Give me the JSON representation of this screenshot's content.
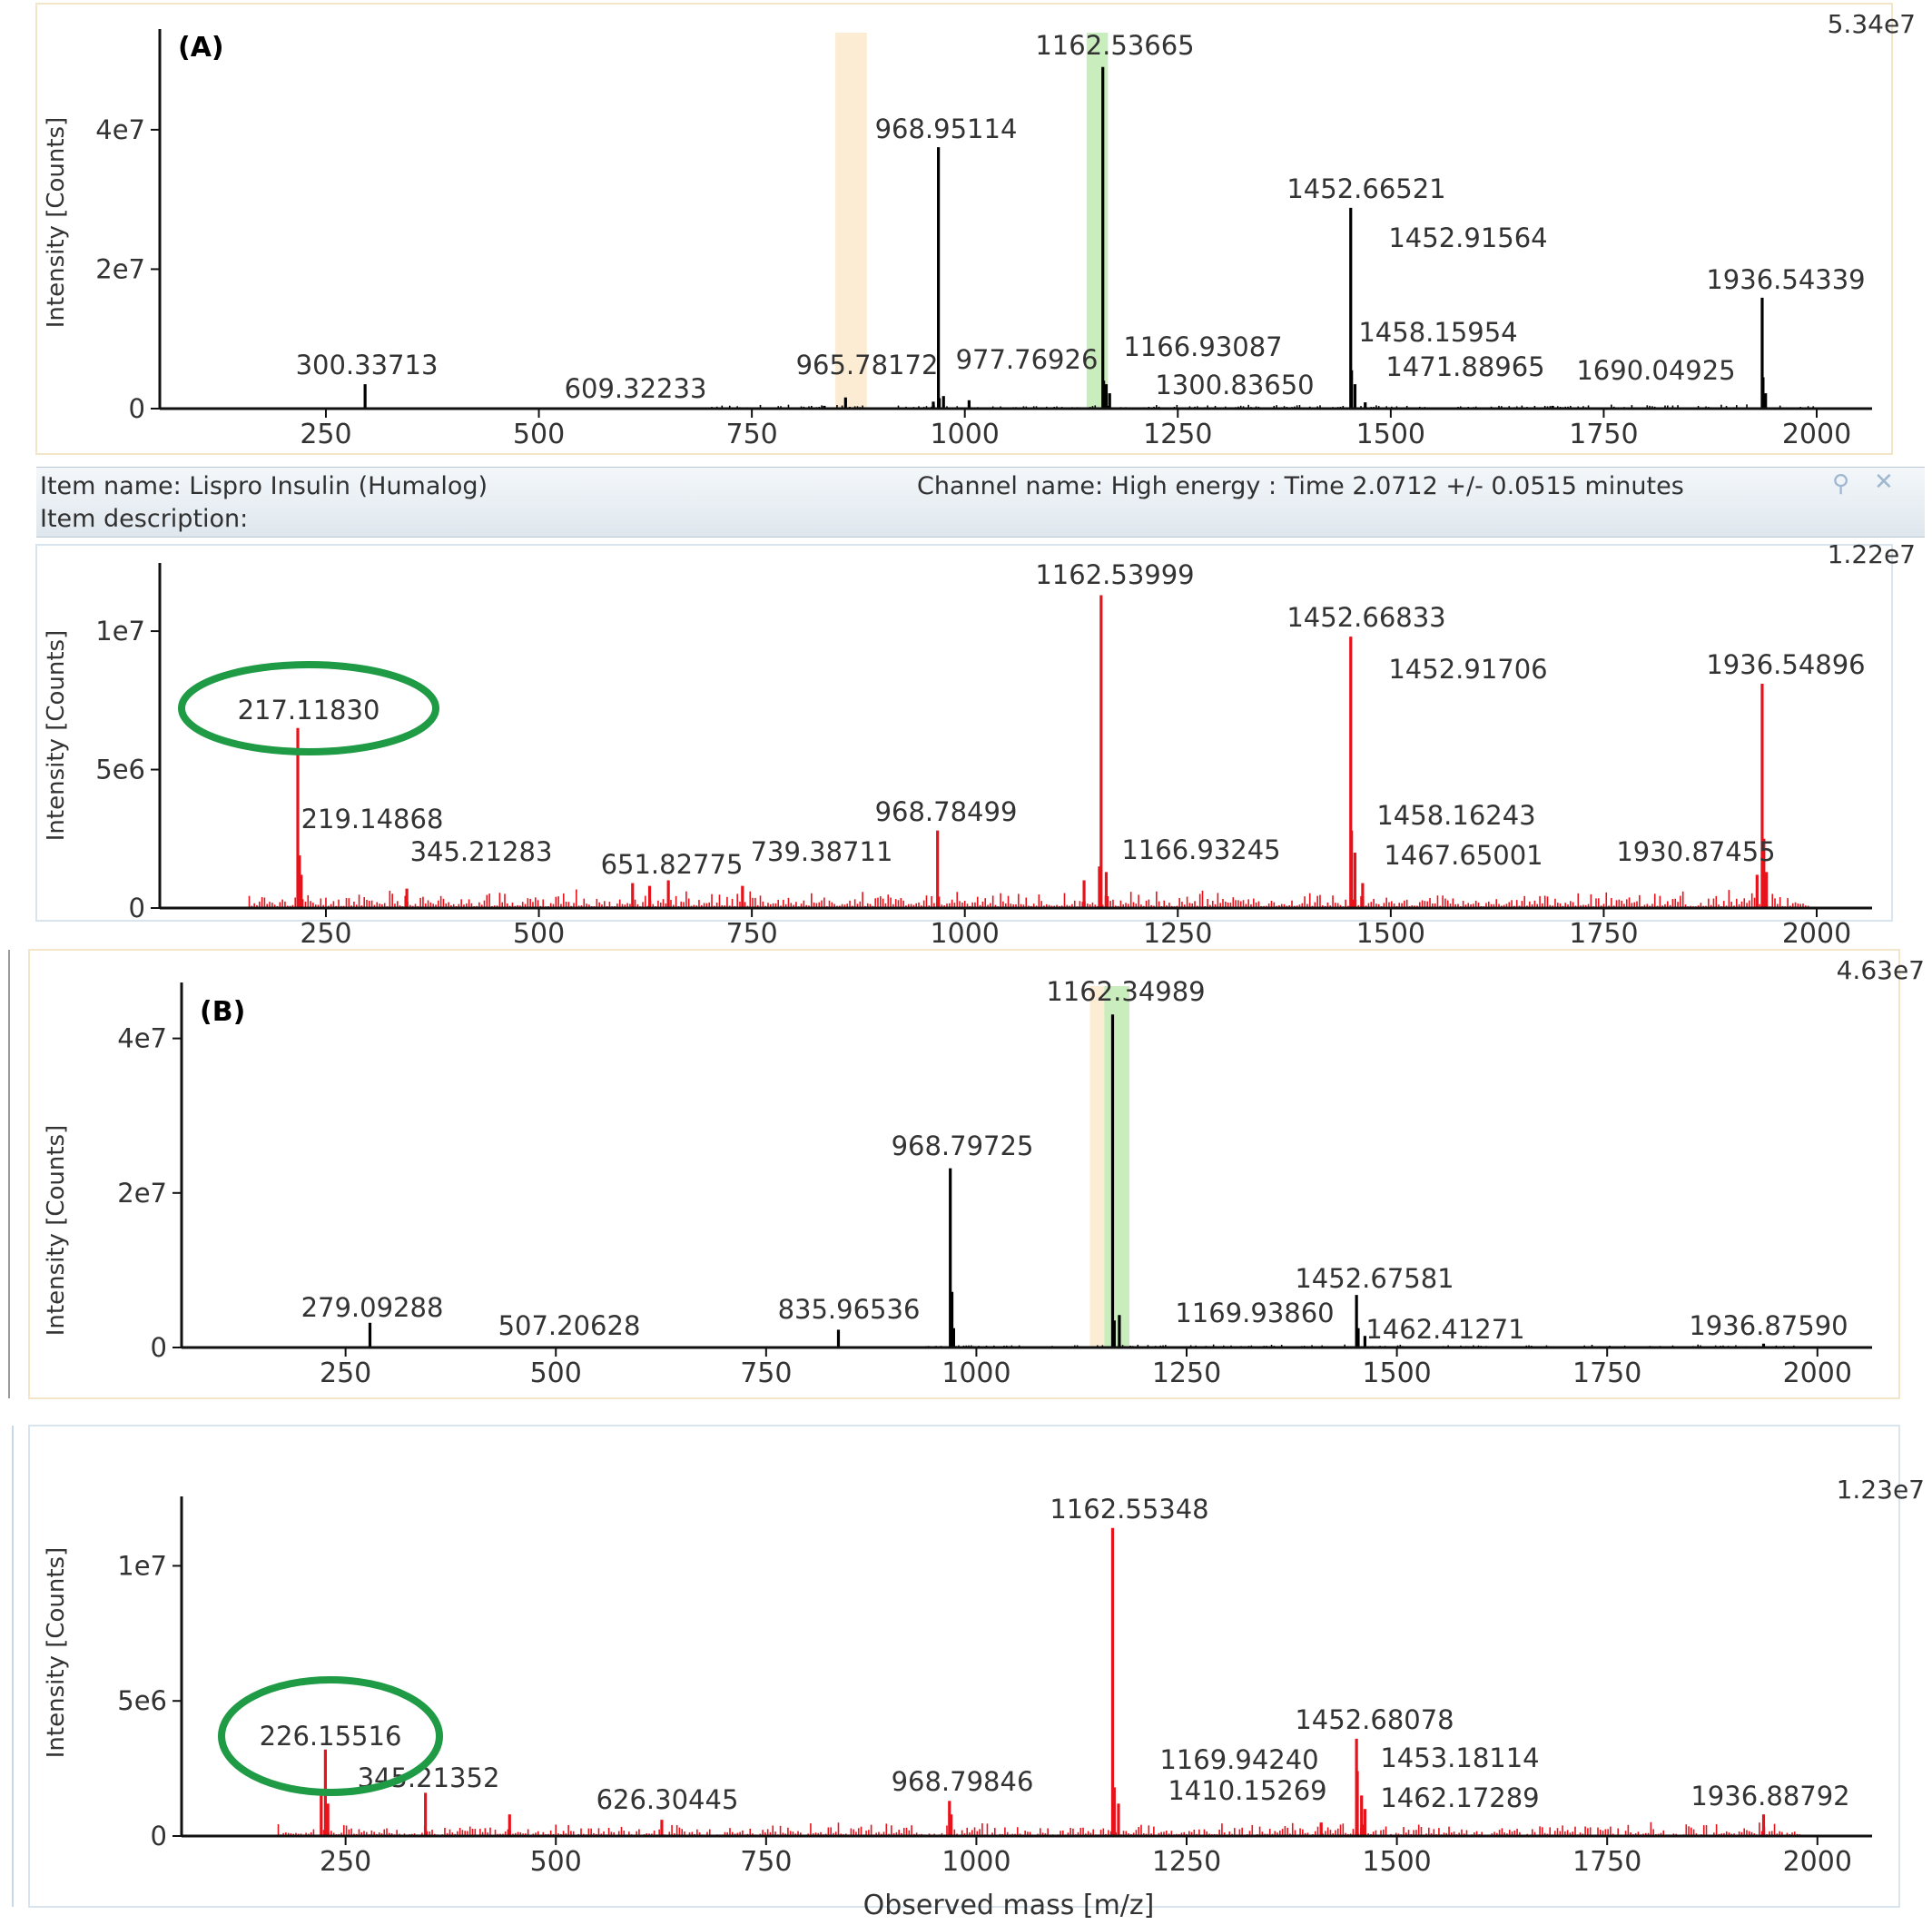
{
  "info_bar": {
    "item_name": "Item name: Lispro Insulin (Humalog)",
    "channel_name": "Channel name: High energy : Time 2.0712 +/- 0.0515 minutes",
    "item_description": "Item description:",
    "pin_icon": "pin-icon",
    "close_icon": "close-icon"
  },
  "x_axis_label": "Observed mass [m/z]",
  "chart_data": [
    {
      "type": "bar",
      "panel_label": "(A)",
      "max_label": "5.34e7",
      "ylabel": "Intensity [Counts]",
      "color": "#000000",
      "xlim": [
        55,
        2065
      ],
      "ylim": [
        0,
        53400000
      ],
      "xticks": [
        250,
        500,
        750,
        1000,
        1250,
        1500,
        1750,
        2000
      ],
      "yticks": [
        {
          "v": 0,
          "label": "0"
        },
        {
          "v": 20000000,
          "label": "2e7"
        },
        {
          "v": 40000000,
          "label": "4e7"
        }
      ],
      "highlights": [
        {
          "x0": 1143,
          "x1": 1168,
          "color": "#bfeab0"
        },
        {
          "x0": 848,
          "x1": 885,
          "color": "#fbe9cc"
        }
      ],
      "peaks": [
        {
          "mz": 296,
          "intensity": 3500000
        },
        {
          "mz": 835,
          "intensity": 400000
        },
        {
          "mz": 860,
          "intensity": 1600000
        },
        {
          "mz": 963,
          "intensity": 1000000
        },
        {
          "mz": 969,
          "intensity": 37500000
        },
        {
          "mz": 970,
          "intensity": 1500000
        },
        {
          "mz": 975,
          "intensity": 1800000
        },
        {
          "mz": 1005,
          "intensity": 1200000
        },
        {
          "mz": 1162,
          "intensity": 49000000
        },
        {
          "mz": 1163,
          "intensity": 4000000
        },
        {
          "mz": 1166,
          "intensity": 3500000
        },
        {
          "mz": 1170,
          "intensity": 2200000
        },
        {
          "mz": 1453,
          "intensity": 28800000
        },
        {
          "mz": 1454,
          "intensity": 5500000
        },
        {
          "mz": 1458,
          "intensity": 3500000
        },
        {
          "mz": 1470,
          "intensity": 900000
        },
        {
          "mz": 1690,
          "intensity": 400000
        },
        {
          "mz": 1936,
          "intensity": 15900000
        },
        {
          "mz": 1937,
          "intensity": 4500000
        },
        {
          "mz": 1940,
          "intensity": 2200000
        }
      ],
      "noise": {
        "start": 700,
        "end": 2000,
        "level": 350000,
        "seed": 3
      },
      "annotations": [
        {
          "label": "1162.53665",
          "mz": 1162.5
        },
        {
          "label": "968.95114",
          "mz": 969
        },
        {
          "label": "1452.66521",
          "mz": 1453
        },
        {
          "label": "1452.91564",
          "mz": 1453
        },
        {
          "label": "1936.54339",
          "mz": 1936
        },
        {
          "label": "300.33713",
          "mz": 300
        },
        {
          "label": "609.32233",
          "mz": 609
        },
        {
          "label": "965.78172",
          "mz": 966
        },
        {
          "label": "977.76926",
          "mz": 978
        },
        {
          "label": "1166.93087",
          "mz": 1167
        },
        {
          "label": "1300.83650",
          "mz": 1301
        },
        {
          "label": "1458.15954",
          "mz": 1458
        },
        {
          "label": "1471.88965",
          "mz": 1472
        },
        {
          "label": "1690.04925",
          "mz": 1690
        }
      ]
    },
    {
      "type": "bar",
      "panel_label": "",
      "max_label": "1.22e7",
      "ylabel": "Intensity [Counts]",
      "color": "#e8121b",
      "xlim": [
        55,
        2065
      ],
      "ylim": [
        0,
        12200000
      ],
      "xticks": [
        250,
        500,
        750,
        1000,
        1250,
        1500,
        1750,
        2000
      ],
      "yticks": [
        {
          "v": 0,
          "label": "0"
        },
        {
          "v": 5000000,
          "label": "5e6"
        },
        {
          "v": 10000000,
          "label": "1e7"
        }
      ],
      "highlights": [],
      "circle_label": "217.11830",
      "peaks": [
        {
          "mz": 217,
          "intensity": 6500000
        },
        {
          "mz": 219,
          "intensity": 1900000
        },
        {
          "mz": 221,
          "intensity": 1200000
        },
        {
          "mz": 345,
          "intensity": 700000
        },
        {
          "mz": 610,
          "intensity": 900000
        },
        {
          "mz": 630,
          "intensity": 800000
        },
        {
          "mz": 652,
          "intensity": 1000000
        },
        {
          "mz": 739,
          "intensity": 800000
        },
        {
          "mz": 968,
          "intensity": 2800000
        },
        {
          "mz": 1160,
          "intensity": 11300000
        },
        {
          "mz": 1158,
          "intensity": 1500000
        },
        {
          "mz": 1166,
          "intensity": 1300000
        },
        {
          "mz": 1140,
          "intensity": 1000000
        },
        {
          "mz": 1453,
          "intensity": 9800000
        },
        {
          "mz": 1454,
          "intensity": 2800000
        },
        {
          "mz": 1458,
          "intensity": 2000000
        },
        {
          "mz": 1467,
          "intensity": 900000
        },
        {
          "mz": 1930,
          "intensity": 1200000
        },
        {
          "mz": 1936,
          "intensity": 8100000
        },
        {
          "mz": 1938,
          "intensity": 2500000
        },
        {
          "mz": 1941,
          "intensity": 1300000
        }
      ],
      "noise": {
        "start": 160,
        "end": 1990,
        "level": 400000,
        "seed": 11
      },
      "annotations": [
        {
          "label": "1162.53999",
          "mz": 1162
        },
        {
          "label": "1452.66833",
          "mz": 1453
        },
        {
          "label": "1452.91706",
          "mz": 1453
        },
        {
          "label": "1936.54896",
          "mz": 1936
        },
        {
          "label": "219.14868",
          "mz": 219
        },
        {
          "label": "345.21283",
          "mz": 345
        },
        {
          "label": "651.82775",
          "mz": 652
        },
        {
          "label": "739.38711",
          "mz": 739
        },
        {
          "label": "968.78499",
          "mz": 968
        },
        {
          "label": "1166.93245",
          "mz": 1167
        },
        {
          "label": "1458.16243",
          "mz": 1458
        },
        {
          "label": "1467.65001",
          "mz": 1467
        },
        {
          "label": "1930.87455",
          "mz": 1931
        }
      ]
    },
    {
      "type": "bar",
      "panel_label": "(B)",
      "max_label": "4.63e7",
      "ylabel": "Intensity [Counts]",
      "color": "#000000",
      "xlim": [
        55,
        2065
      ],
      "ylim": [
        0,
        46300000
      ],
      "xticks": [
        250,
        500,
        750,
        1000,
        1250,
        1500,
        1750,
        2000
      ],
      "yticks": [
        {
          "v": 0,
          "label": "0"
        },
        {
          "v": 20000000,
          "label": "2e7"
        },
        {
          "v": 40000000,
          "label": "4e7"
        }
      ],
      "highlights": [
        {
          "x0": 1152,
          "x1": 1182,
          "color": "#bfeab0"
        },
        {
          "x0": 1135,
          "x1": 1152,
          "color": "#fbe9cc"
        }
      ],
      "peaks": [
        {
          "mz": 279,
          "intensity": 3200000
        },
        {
          "mz": 836,
          "intensity": 2300000
        },
        {
          "mz": 969,
          "intensity": 23200000
        },
        {
          "mz": 971,
          "intensity": 7200000
        },
        {
          "mz": 973,
          "intensity": 2500000
        },
        {
          "mz": 1162,
          "intensity": 43100000
        },
        {
          "mz": 1164,
          "intensity": 3500000
        },
        {
          "mz": 1170,
          "intensity": 4200000
        },
        {
          "mz": 1452,
          "intensity": 6800000
        },
        {
          "mz": 1454,
          "intensity": 2500000
        },
        {
          "mz": 1462,
          "intensity": 1500000
        },
        {
          "mz": 1936,
          "intensity": 500000
        }
      ],
      "noise": {
        "start": 940,
        "end": 1980,
        "level": 250000,
        "seed": 5
      },
      "annotations": [
        {
          "label": "1162.34989",
          "mz": 1162
        },
        {
          "label": "968.79725",
          "mz": 969
        },
        {
          "label": "279.09288",
          "mz": 279
        },
        {
          "label": "507.20628",
          "mz": 507
        },
        {
          "label": "835.96536",
          "mz": 836
        },
        {
          "label": "1169.93860",
          "mz": 1170
        },
        {
          "label": "1452.67581",
          "mz": 1452
        },
        {
          "label": "1462.41271",
          "mz": 1462
        },
        {
          "label": "1936.87590",
          "mz": 1936
        }
      ]
    },
    {
      "type": "bar",
      "panel_label": "",
      "max_label": "1.23e7",
      "ylabel": "Intensity [Counts]",
      "color": "#e8121b",
      "xlim": [
        55,
        2065
      ],
      "ylim": [
        0,
        12300000
      ],
      "xticks": [
        250,
        500,
        750,
        1000,
        1250,
        1500,
        1750,
        2000
      ],
      "yticks": [
        {
          "v": 0,
          "label": "0"
        },
        {
          "v": 5000000,
          "label": "5e6"
        },
        {
          "v": 10000000,
          "label": "1e7"
        }
      ],
      "highlights": [],
      "circle_label": "226.15516",
      "xlabel": "Observed mass [m/z]",
      "peaks": [
        {
          "mz": 221,
          "intensity": 1500000
        },
        {
          "mz": 226,
          "intensity": 3200000
        },
        {
          "mz": 229,
          "intensity": 1200000
        },
        {
          "mz": 345,
          "intensity": 1600000
        },
        {
          "mz": 445,
          "intensity": 800000
        },
        {
          "mz": 626,
          "intensity": 600000
        },
        {
          "mz": 968,
          "intensity": 1300000
        },
        {
          "mz": 970,
          "intensity": 800000
        },
        {
          "mz": 1162,
          "intensity": 11400000
        },
        {
          "mz": 1164,
          "intensity": 1800000
        },
        {
          "mz": 1169,
          "intensity": 1200000
        },
        {
          "mz": 1410,
          "intensity": 500000
        },
        {
          "mz": 1452,
          "intensity": 3600000
        },
        {
          "mz": 1453,
          "intensity": 2400000
        },
        {
          "mz": 1458,
          "intensity": 1500000
        },
        {
          "mz": 1462,
          "intensity": 1000000
        },
        {
          "mz": 1936,
          "intensity": 800000
        }
      ],
      "noise": {
        "start": 170,
        "end": 1980,
        "level": 300000,
        "seed": 17
      },
      "annotations": [
        {
          "label": "1162.55348",
          "mz": 1162
        },
        {
          "label": "345.21352",
          "mz": 345
        },
        {
          "label": "626.30445",
          "mz": 626
        },
        {
          "label": "968.79846",
          "mz": 968
        },
        {
          "label": "1169.94240",
          "mz": 1169
        },
        {
          "label": "1410.15269",
          "mz": 1410
        },
        {
          "label": "1452.68078",
          "mz": 1452
        },
        {
          "label": "1453.18114",
          "mz": 1453
        },
        {
          "label": "1462.17289",
          "mz": 1462
        },
        {
          "label": "1936.88792",
          "mz": 1936
        }
      ]
    }
  ]
}
